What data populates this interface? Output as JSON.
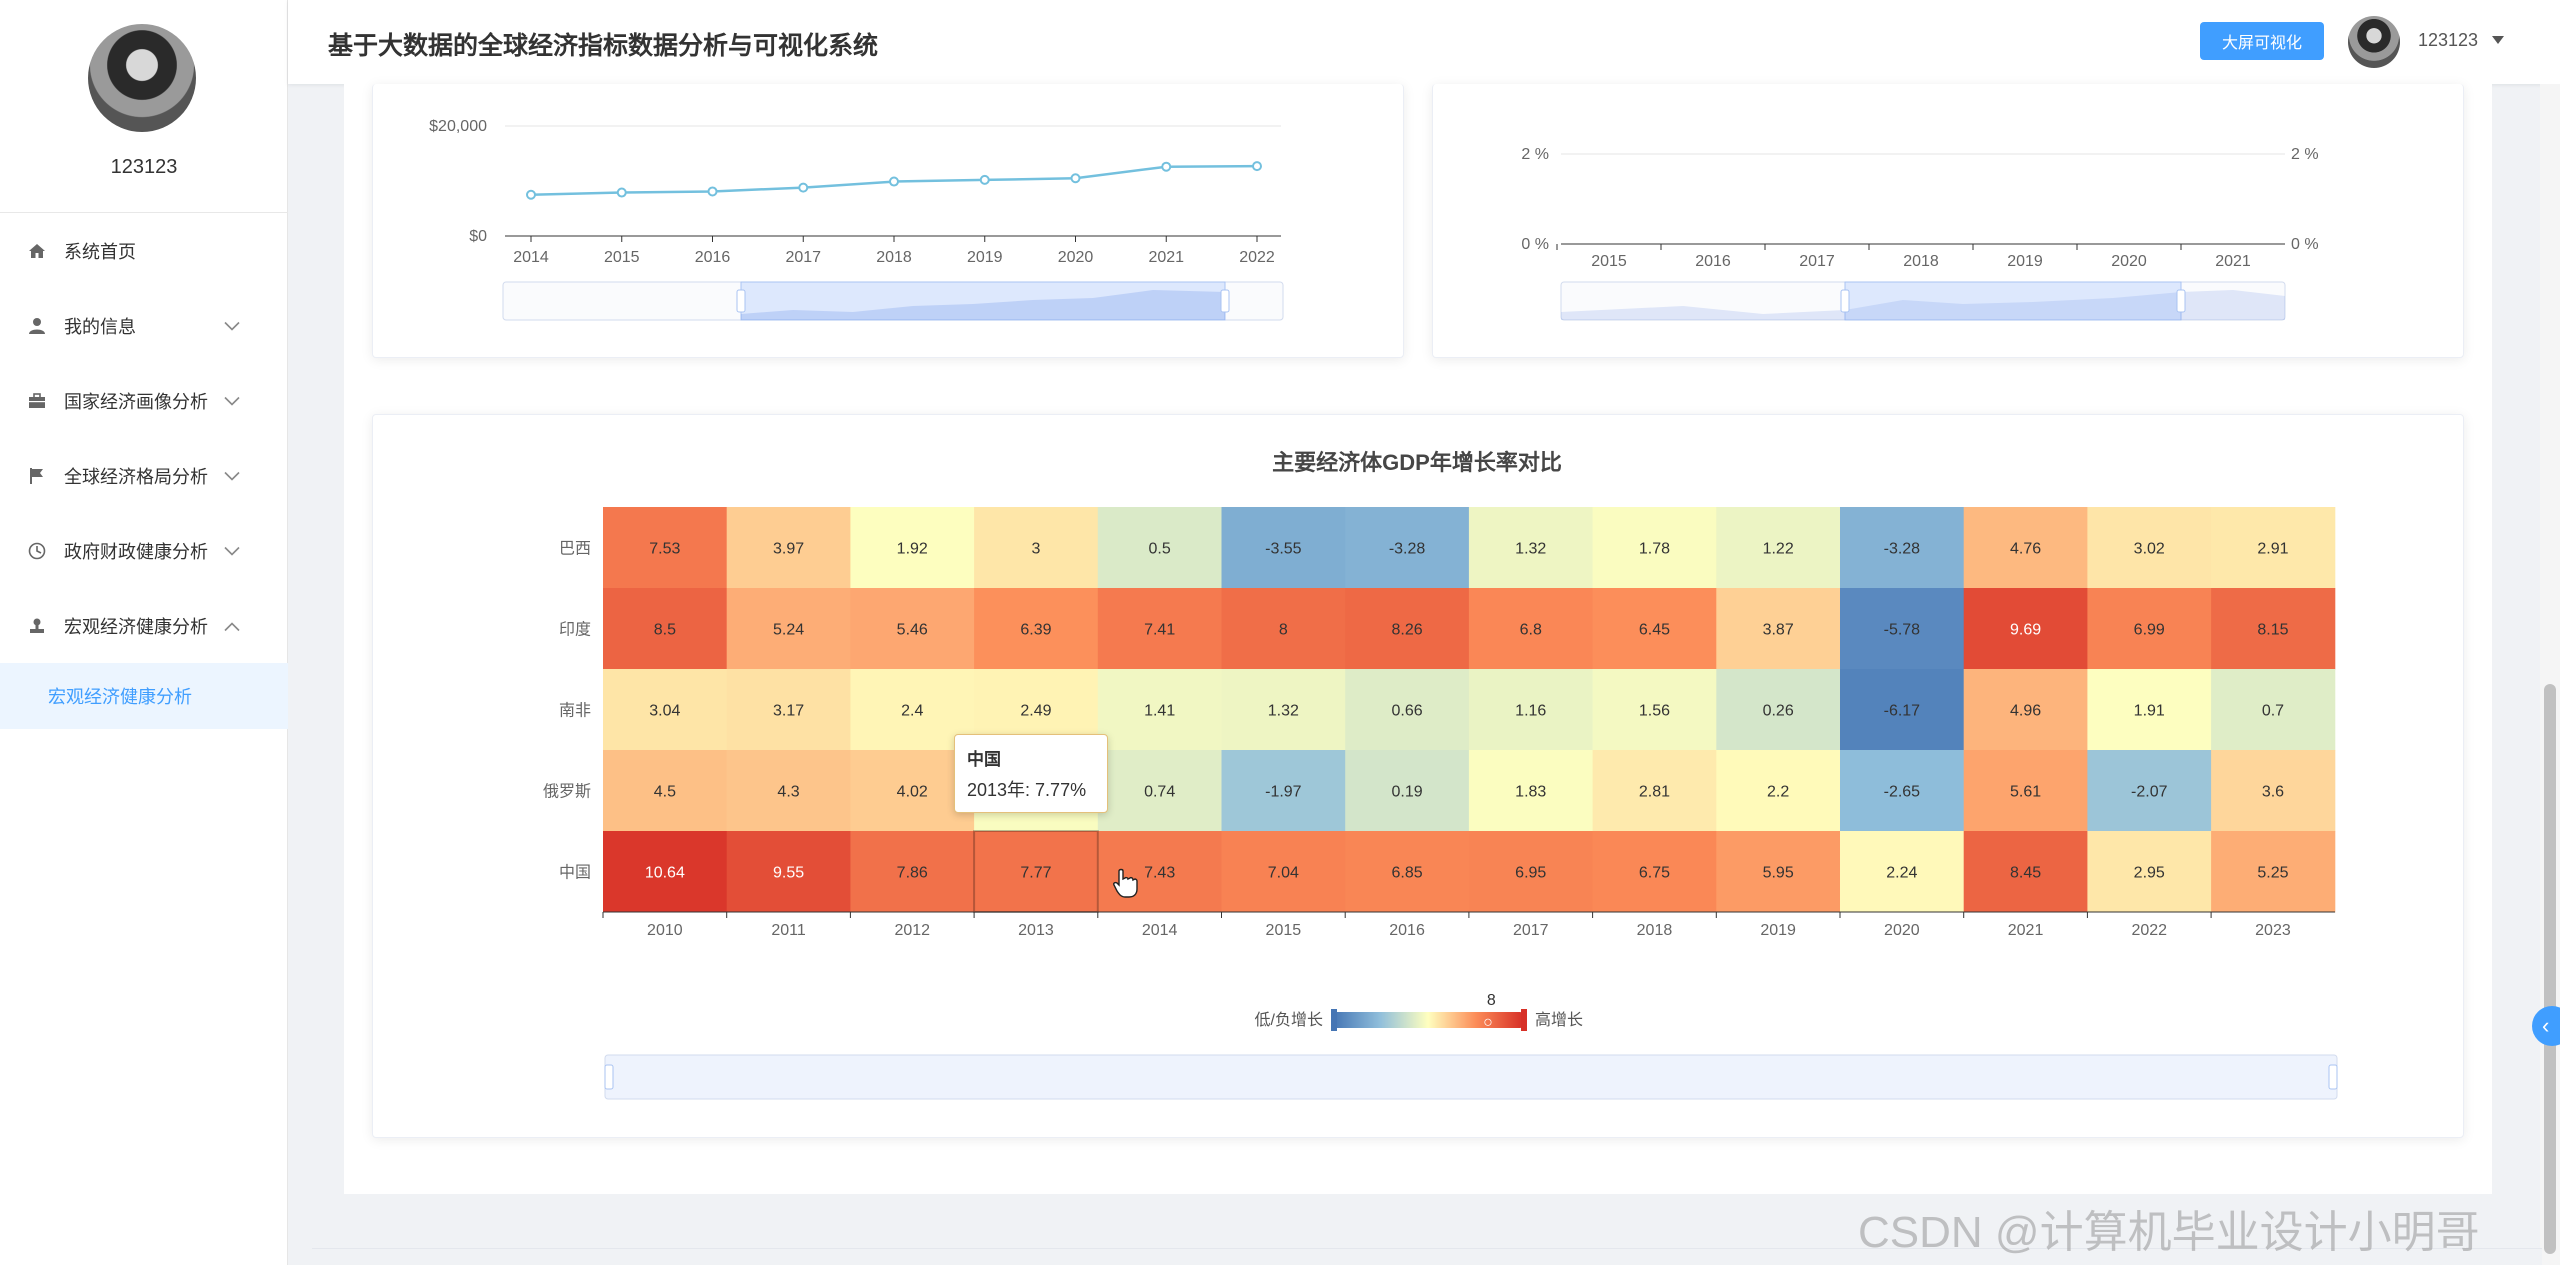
{
  "header": {
    "title": "基于大数据的全球经济指标数据分析与可视化系统",
    "bigscreen_button": "大屏可视化",
    "username": "123123"
  },
  "sidebar": {
    "username": "123123",
    "items": [
      {
        "label": "系统首页",
        "icon": "home-icon"
      },
      {
        "label": "我的信息",
        "icon": "user-icon"
      },
      {
        "label": "国家经济画像分析",
        "icon": "briefcase-icon"
      },
      {
        "label": "全球经济格局分析",
        "icon": "flag-icon"
      },
      {
        "label": "政府财政健康分析",
        "icon": "clock-icon"
      },
      {
        "label": "宏观经济健康分析",
        "icon": "stamp-icon"
      }
    ],
    "sub_items": [
      {
        "label": "宏观经济健康分析"
      }
    ]
  },
  "top_left_chart": {
    "y_ticks": [
      "$20,000",
      "$0"
    ],
    "x_ticks": [
      "2014",
      "2015",
      "2016",
      "2017",
      "2018",
      "2019",
      "2020",
      "2021",
      "2022"
    ]
  },
  "top_right_chart": {
    "y_ticks_left": [
      "2 %",
      "0 %"
    ],
    "y_ticks_right": [
      "2 %",
      "0 %"
    ],
    "x_ticks": [
      "2015",
      "2016",
      "2017",
      "2018",
      "2019",
      "2020",
      "2021"
    ]
  },
  "chart_data": [
    {
      "type": "line",
      "x": [
        2014,
        2015,
        2016,
        2017,
        2018,
        2019,
        2020,
        2021,
        2022
      ],
      "series": [
        {
          "values": [
            7500,
            7900,
            8100,
            8800,
            9900,
            10200,
            10500,
            12600,
            12700
          ]
        }
      ],
      "ylim": [
        0,
        20000
      ],
      "grid": true
    },
    {
      "type": "line",
      "x": [
        2015,
        2016,
        2017,
        2018,
        2019,
        2020,
        2021
      ],
      "ylim": [
        0,
        2
      ],
      "grid": true
    },
    {
      "type": "heatmap",
      "title": "主要经济体GDP年增长率对比",
      "x": [
        "2010",
        "2011",
        "2012",
        "2013",
        "2014",
        "2015",
        "2016",
        "2017",
        "2018",
        "2019",
        "2020",
        "2021",
        "2022",
        "2023"
      ],
      "y": [
        "巴西",
        "印度",
        "南非",
        "俄罗斯",
        "中国"
      ],
      "values": [
        [
          7.53,
          3.97,
          1.92,
          3,
          0.5,
          -3.55,
          -3.28,
          1.32,
          1.78,
          1.22,
          -3.28,
          4.76,
          3.02,
          2.91
        ],
        [
          8.5,
          5.24,
          5.46,
          6.39,
          7.41,
          8,
          8.26,
          6.8,
          6.45,
          3.87,
          -5.78,
          9.69,
          6.99,
          8.15
        ],
        [
          3.04,
          3.17,
          2.4,
          2.49,
          1.41,
          1.32,
          0.66,
          1.16,
          1.56,
          0.26,
          -6.17,
          4.96,
          1.91,
          0.7
        ],
        [
          4.5,
          4.3,
          4.02,
          1.76,
          0.74,
          -1.97,
          0.19,
          1.83,
          2.81,
          2.2,
          -2.65,
          5.61,
          -2.07,
          3.6
        ],
        [
          10.64,
          9.55,
          7.86,
          7.77,
          7.43,
          7.04,
          6.85,
          6.95,
          6.75,
          5.95,
          2.24,
          8.45,
          2.95,
          5.25
        ]
      ],
      "visual_map": {
        "min": -7,
        "max": 11,
        "current": 8,
        "low_label": "低/负增长",
        "high_label": "高增长"
      },
      "grid": false
    }
  ],
  "tooltip": {
    "title": "中国",
    "body": "2013年: 7.77%"
  },
  "watermark": "CSDN @计算机毕业设计小明哥",
  "colors": {
    "accent": "#409eff",
    "line": "#91cc75",
    "line_series": "#73c0de"
  }
}
